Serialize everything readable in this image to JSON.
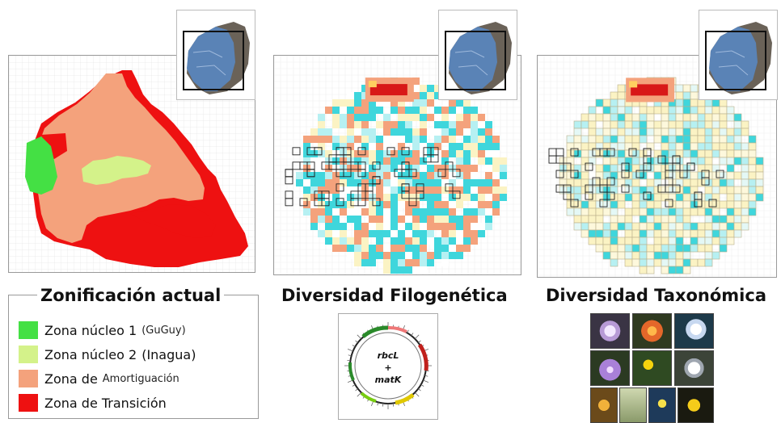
{
  "titles": {
    "zonificacion": "Zonificación actual",
    "filogenetica": "Diversidad Filogenética",
    "taxonomica": "Diversidad Taxonómica"
  },
  "legend": [
    {
      "label": "Zona núcleo 1",
      "sub": "(GuGuy)",
      "color": "#44e044"
    },
    {
      "label": "Zona núcleo 2",
      "sub": "(Inagua)",
      "color": "#d4f28a"
    },
    {
      "label": "Zona de",
      "sub": "Amortiguación",
      "color": "#f4a27c"
    },
    {
      "label": "Zona de Transición",
      "sub": "",
      "color": "#ee1111"
    }
  ],
  "genome": {
    "marker1": "rbcL",
    "plus": "+",
    "marker2": "matK"
  },
  "colors": {
    "nucleo1": "#44e044",
    "nucleo2": "#d4f28a",
    "amortiguacion": "#f4a27c",
    "transicion": "#ee1111",
    "cyan": "#3fd6dc",
    "lightcyan": "#b6f0f2",
    "paleyellow": "#fbf3c4",
    "salmon": "#f4a27c",
    "red": "#d81818"
  }
}
